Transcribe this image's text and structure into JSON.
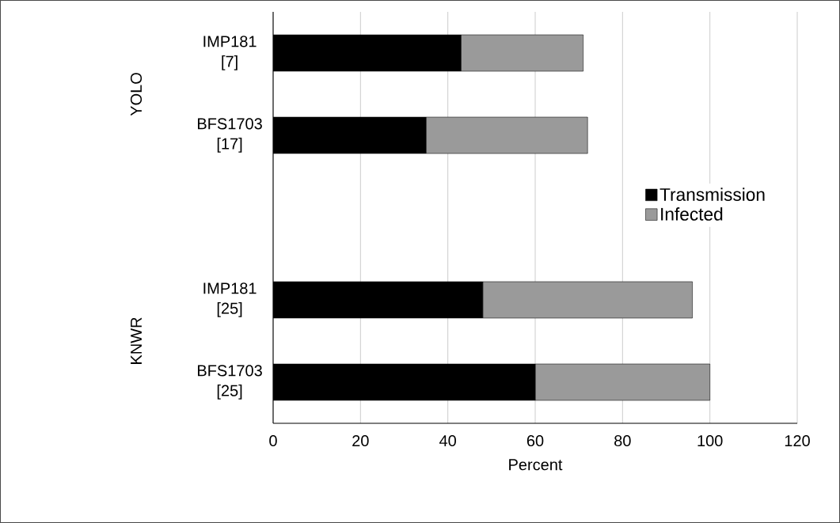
{
  "chart_data": {
    "type": "bar",
    "orientation": "horizontal",
    "stacked": true,
    "categories": [
      "IMP181 [7]",
      "BFS1703 [17]",
      null,
      "IMP181 [25]",
      "BFS1703 [25]"
    ],
    "series": [
      {
        "name": "Transmission",
        "color": "#000000",
        "values": [
          43,
          35,
          null,
          48,
          60
        ]
      },
      {
        "name": "Infected",
        "color": "#9a9a9a",
        "values": [
          28,
          37,
          null,
          48,
          40
        ]
      }
    ],
    "xlabel": "Percent",
    "xlim": [
      0,
      120
    ],
    "xticks": [
      0,
      20,
      40,
      60,
      80,
      100,
      120
    ],
    "annotations": [
      "YOLO",
      "KNWR"
    ],
    "grid": "x",
    "legend": "right"
  }
}
